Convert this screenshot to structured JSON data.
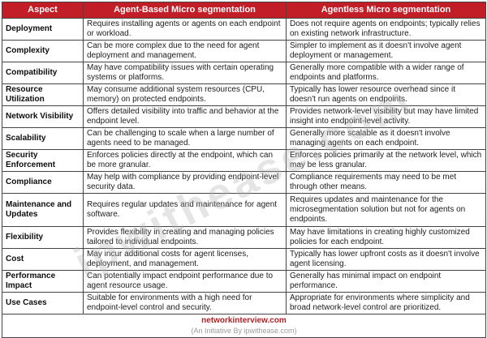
{
  "table": {
    "headers": [
      "Aspect",
      "Agent-Based Micro segmentation",
      "Agentless Micro segmentation"
    ],
    "rows": [
      {
        "aspect": "Deployment",
        "agent_based": "Requires installing agents or agents on each endpoint or workload.",
        "agentless": "Does not require agents on endpoints; typically relies on existing network infrastructure."
      },
      {
        "aspect": "Complexity",
        "agent_based": "Can be more complex due to the need for agent deployment and management.",
        "agentless": "Simpler to implement as it doesn't involve agent deployment or management."
      },
      {
        "aspect": "Compatibility",
        "agent_based": "May have compatibility issues with certain operating systems or platforms.",
        "agentless": "Generally more compatible with a wider range of endpoints and platforms."
      },
      {
        "aspect": "Resource Utilization",
        "agent_based": "May consume additional system resources (CPU, memory) on protected endpoints.",
        "agentless": "Typically has lower resource overhead since it doesn't run agents on endpoints."
      },
      {
        "aspect": "Network Visibility",
        "agent_based": "Offers detailed visibility into traffic and behavior at the endpoint level.",
        "agentless": "Provides network-level visibility but may have limited insight into endpoint-level activity."
      },
      {
        "aspect": "Scalability",
        "agent_based": "Can be challenging to scale when a large number of agents need to be managed.",
        "agentless": "Generally more scalable as it doesn't involve managing agents on each endpoint."
      },
      {
        "aspect": "Security Enforcement",
        "agent_based": "Enforces policies directly at the endpoint, which can be more granular.",
        "agentless": "Enforces policies primarily at the network level, which may be less granular."
      },
      {
        "aspect": "Compliance",
        "agent_based": "May help with compliance by providing endpoint-level security data.",
        "agentless": "Compliance requirements may need to be met through other means."
      },
      {
        "aspect": "Maintenance and Updates",
        "agent_based": "Requires regular updates and maintenance for agent software.",
        "agentless": "Requires updates and maintenance for the microsegmentation solution but not for agents on endpoints."
      },
      {
        "aspect": "Flexibility",
        "agent_based": "Provides flexibility in creating and managing policies tailored to individual endpoints.",
        "agentless": "May have limitations in creating highly customized policies for each endpoint."
      },
      {
        "aspect": "Cost",
        "agent_based": "May incur additional costs for agent licenses, deployment, and management.",
        "agentless": "Typically has lower upfront costs as it doesn't involve agent licensing."
      },
      {
        "aspect": "Performance Impact",
        "agent_based": "Can potentially impact endpoint performance due to agent resource usage.",
        "agentless": "Generally has minimal impact on endpoint performance."
      },
      {
        "aspect": "Use Cases",
        "agent_based": "Suitable for environments with a high need for endpoint-level control and security.",
        "agentless": "Appropriate for environments where simplicity and broad network-level control are prioritized."
      }
    ]
  },
  "footer": {
    "site": "networkinterview.com",
    "initiative": "(An Initiative By ipwithease.com)"
  },
  "watermark": {
    "text": "ipwithease.com"
  },
  "colors": {
    "header_bg": "#C21E28",
    "header_text": "#FFFFFF",
    "border": "#454545",
    "footer_site": "#B01F24",
    "footer_initiative": "#9C9C9C",
    "watermark": "#AFAFAF"
  }
}
